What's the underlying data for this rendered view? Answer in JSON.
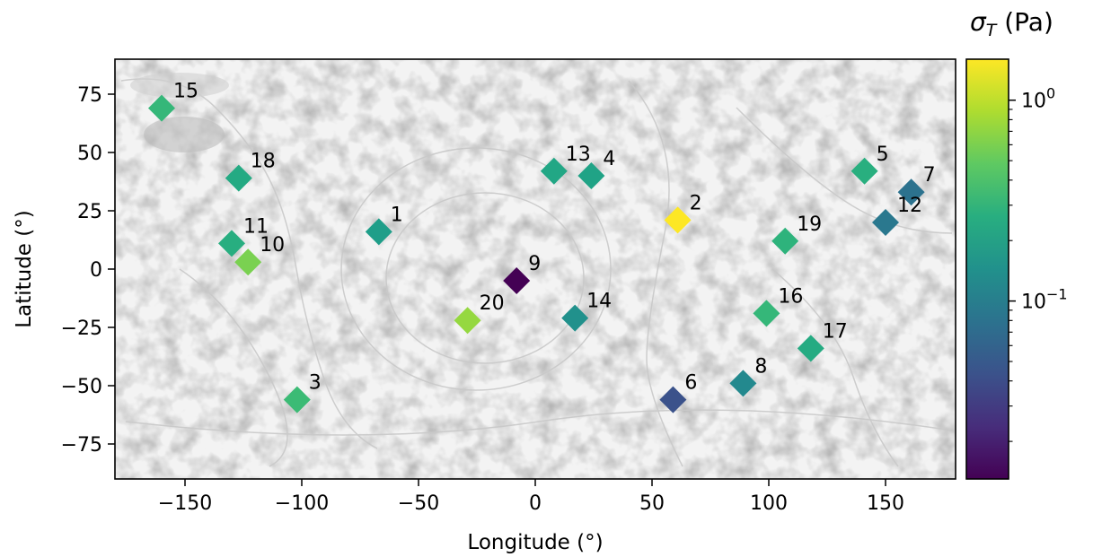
{
  "chart_data": {
    "type": "scatter",
    "title": "",
    "xlabel": "Longitude (°)",
    "ylabel": "Latitude (°)",
    "xlim": [
      -180,
      180
    ],
    "ylim": [
      -90,
      90
    ],
    "xticks": [
      -150,
      -100,
      -50,
      0,
      50,
      100,
      150
    ],
    "yticks": [
      -75,
      -50,
      -25,
      0,
      25,
      50,
      75
    ],
    "xtick_labels": [
      "−150",
      "−100",
      "−50",
      "0",
      "50",
      "100",
      "150"
    ],
    "ytick_labels": [
      "−75",
      "−50",
      "−25",
      "0",
      "25",
      "50",
      "75"
    ],
    "marker": "diamond",
    "grid": false,
    "background": "grayscale planetary surface map",
    "colorbar": {
      "label_main": "σ",
      "label_sub": "T",
      "label_unit": " (Pa)",
      "scale": "log",
      "range": [
        0.013,
        1.6
      ],
      "colormap": "viridis",
      "major_ticks": [
        0.1,
        1
      ],
      "tick_labels": [
        {
          "base": "10",
          "exp": "−1"
        },
        {
          "base": "10",
          "exp": "0"
        }
      ]
    },
    "points": [
      {
        "label": "1",
        "x": -67,
        "y": 16,
        "color": "#1f9e89"
      },
      {
        "label": "2",
        "x": 61,
        "y": 21,
        "color": "#fde725"
      },
      {
        "label": "3",
        "x": -102,
        "y": -56,
        "color": "#3bbb75"
      },
      {
        "label": "4",
        "x": 24,
        "y": 40,
        "color": "#20a386"
      },
      {
        "label": "5",
        "x": 141,
        "y": 42,
        "color": "#29af7f"
      },
      {
        "label": "6",
        "x": 59,
        "y": -56,
        "color": "#3b528b"
      },
      {
        "label": "7",
        "x": 161,
        "y": 33,
        "color": "#2c728e"
      },
      {
        "label": "8",
        "x": 89,
        "y": -49,
        "color": "#23898e"
      },
      {
        "label": "9",
        "x": -8,
        "y": -5,
        "color": "#440154"
      },
      {
        "label": "10",
        "x": -123,
        "y": 3,
        "color": "#7ad151"
      },
      {
        "label": "11",
        "x": -130,
        "y": 11,
        "color": "#28ae80"
      },
      {
        "label": "12",
        "x": 150,
        "y": 20,
        "color": "#2a788e"
      },
      {
        "label": "13",
        "x": 8,
        "y": 42,
        "color": "#22a785"
      },
      {
        "label": "14",
        "x": 17,
        "y": -21,
        "color": "#21918c"
      },
      {
        "label": "15",
        "x": -160,
        "y": 69,
        "color": "#35b779"
      },
      {
        "label": "16",
        "x": 99,
        "y": -19,
        "color": "#35b779"
      },
      {
        "label": "17",
        "x": 118,
        "y": -34,
        "color": "#25ab82"
      },
      {
        "label": "18",
        "x": -127,
        "y": 39,
        "color": "#24aa83"
      },
      {
        "label": "19",
        "x": 107,
        "y": 12,
        "color": "#2eb37c"
      },
      {
        "label": "20",
        "x": -29,
        "y": -22,
        "color": "#95d840"
      }
    ]
  }
}
